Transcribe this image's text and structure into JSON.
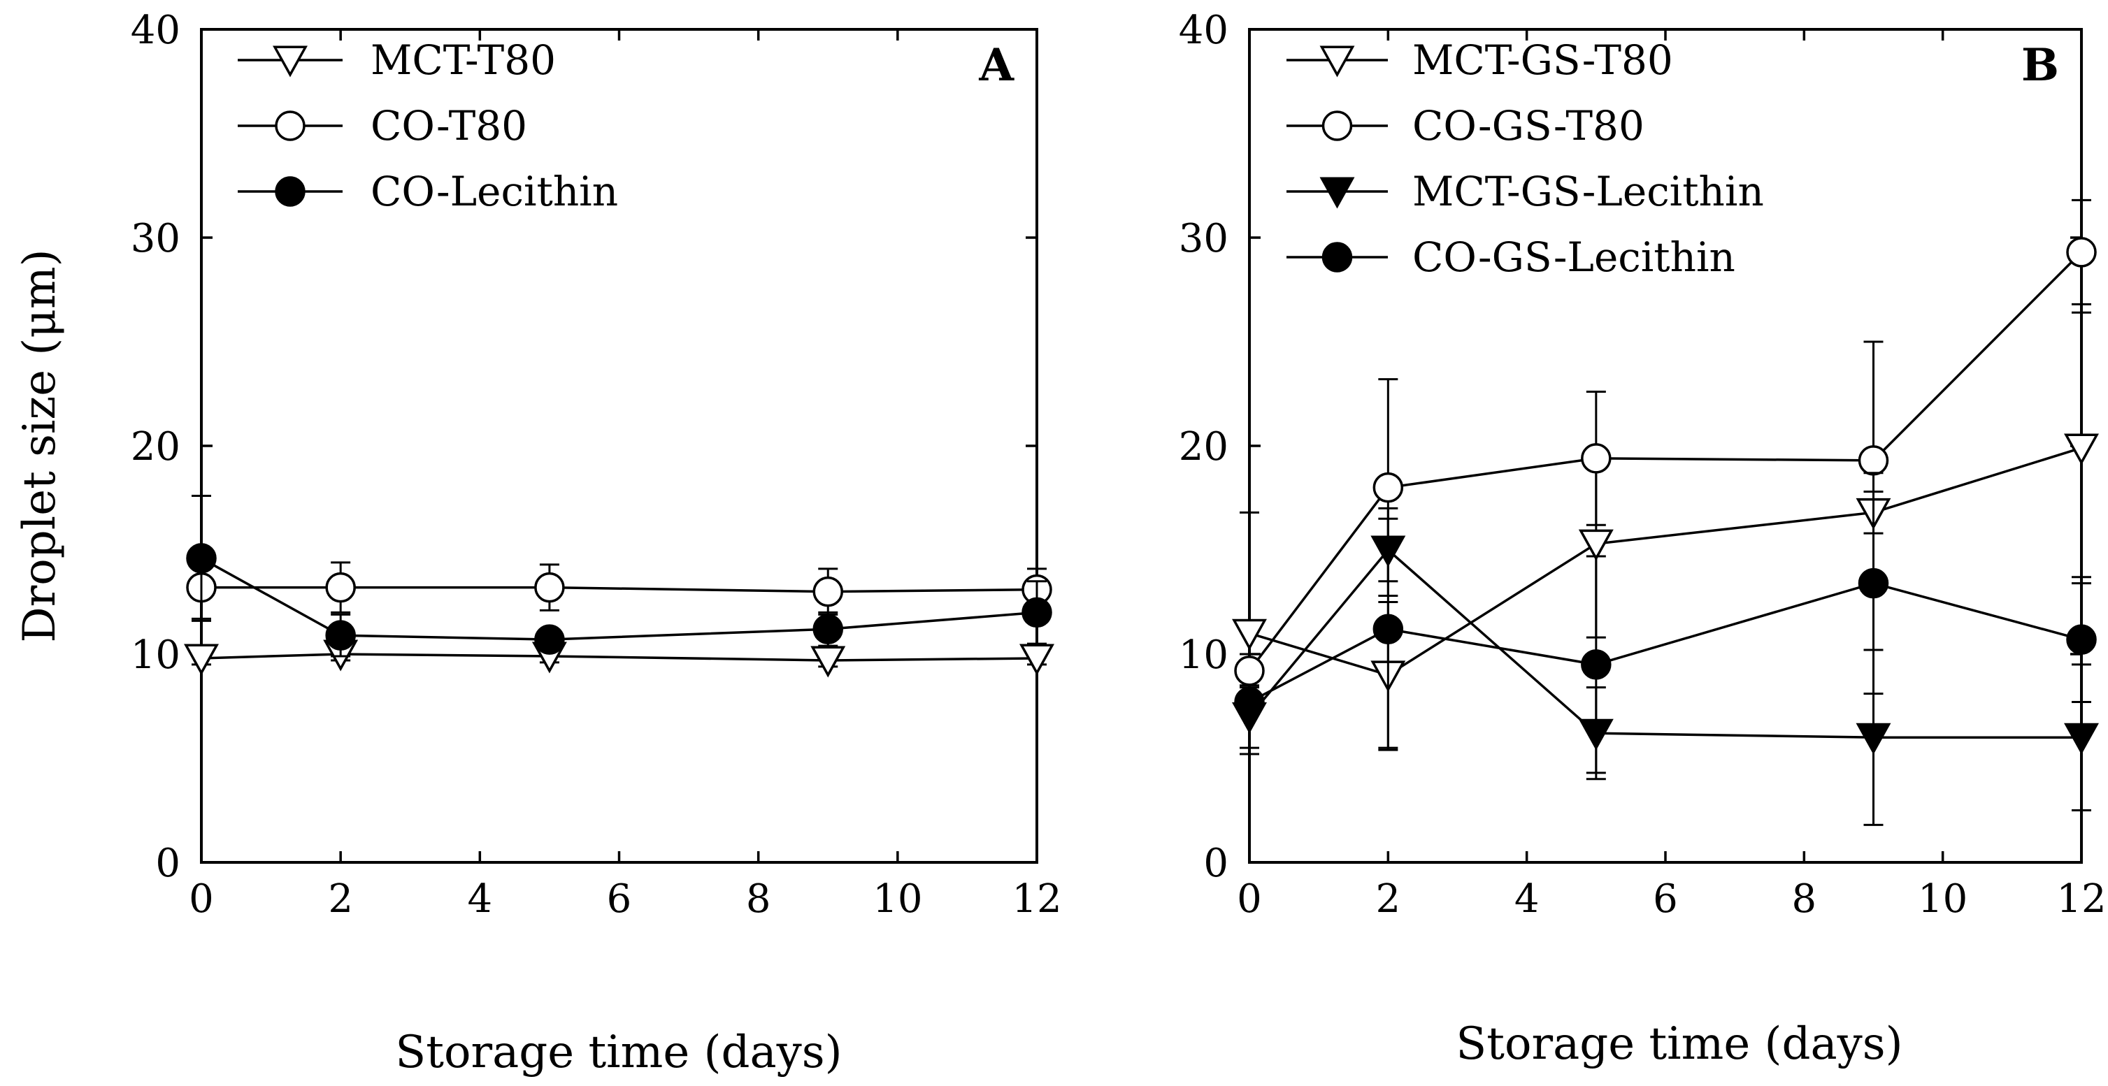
{
  "chart_data": [
    {
      "type": "line",
      "panel_label": "A",
      "xlabel": "Storage time (days)",
      "ylabel": "Droplet size (μm)",
      "xlim": [
        0,
        12
      ],
      "ylim": [
        0,
        40
      ],
      "xticks": [
        "0",
        "2",
        "4",
        "6",
        "8",
        "10",
        "12"
      ],
      "yticks": [
        "0",
        "10",
        "20",
        "30",
        "40"
      ],
      "legend_position": "top-left",
      "series": [
        {
          "name": "MCT-T80",
          "marker": "triangle-down-open",
          "x": [
            0,
            2,
            5,
            9,
            12
          ],
          "y": [
            9.8,
            10.0,
            9.9,
            9.7,
            9.8
          ],
          "error": [
            0.3,
            0.3,
            0.3,
            0.3,
            0.3
          ]
        },
        {
          "name": "CO-T80",
          "marker": "circle-open",
          "x": [
            0,
            2,
            5,
            9,
            12
          ],
          "y": [
            13.2,
            13.2,
            13.2,
            13.0,
            13.1
          ],
          "error": [
            1.5,
            1.2,
            1.1,
            1.1,
            1.0
          ]
        },
        {
          "name": "CO-Lecithin",
          "marker": "circle-filled",
          "x": [
            0,
            2,
            5,
            9,
            12
          ],
          "y": [
            14.6,
            10.9,
            10.7,
            11.2,
            12.0
          ],
          "error": [
            3.0,
            1.0,
            0.5,
            0.8,
            1.5
          ]
        }
      ]
    },
    {
      "type": "line",
      "panel_label": "B",
      "xlabel": "Storage time (days)",
      "ylabel": "",
      "xlim": [
        0,
        12
      ],
      "ylim": [
        0,
        40
      ],
      "xticks": [
        "0",
        "2",
        "4",
        "6",
        "8",
        "10",
        "12"
      ],
      "yticks": [
        "0",
        "10",
        "20",
        "30",
        "40"
      ],
      "legend_position": "top-left",
      "series": [
        {
          "name": "MCT-GS-T80",
          "marker": "triangle-down-open",
          "x": [
            0,
            2,
            5,
            9,
            12
          ],
          "y": [
            11.0,
            9.0,
            15.3,
            16.8,
            19.9
          ],
          "error": [
            5.8,
            3.5,
            4.5,
            1.0,
            6.5
          ]
        },
        {
          "name": "CO-GS-T80",
          "marker": "circle-open",
          "x": [
            0,
            2,
            5,
            9,
            12
          ],
          "y": [
            9.2,
            18.0,
            19.4,
            19.3,
            29.3
          ],
          "error": [
            0.8,
            5.2,
            3.2,
            5.7,
            2.5
          ]
        },
        {
          "name": "MCT-GS-Lecithin",
          "marker": "triangle-down-filled",
          "x": [
            0,
            2,
            5,
            9,
            12
          ],
          "y": [
            7.0,
            15.0,
            6.2,
            6.0,
            6.0
          ],
          "error": [
            1.5,
            1.5,
            2.2,
            4.2,
            3.5
          ]
        },
        {
          "name": "CO-GS-Lecithin",
          "marker": "circle-filled",
          "x": [
            0,
            2,
            5,
            9,
            12
          ],
          "y": [
            7.7,
            11.2,
            9.5,
            13.4,
            10.7
          ],
          "error": [
            0.5,
            5.8,
            5.2,
            5.3,
            3.0
          ]
        }
      ]
    }
  ]
}
